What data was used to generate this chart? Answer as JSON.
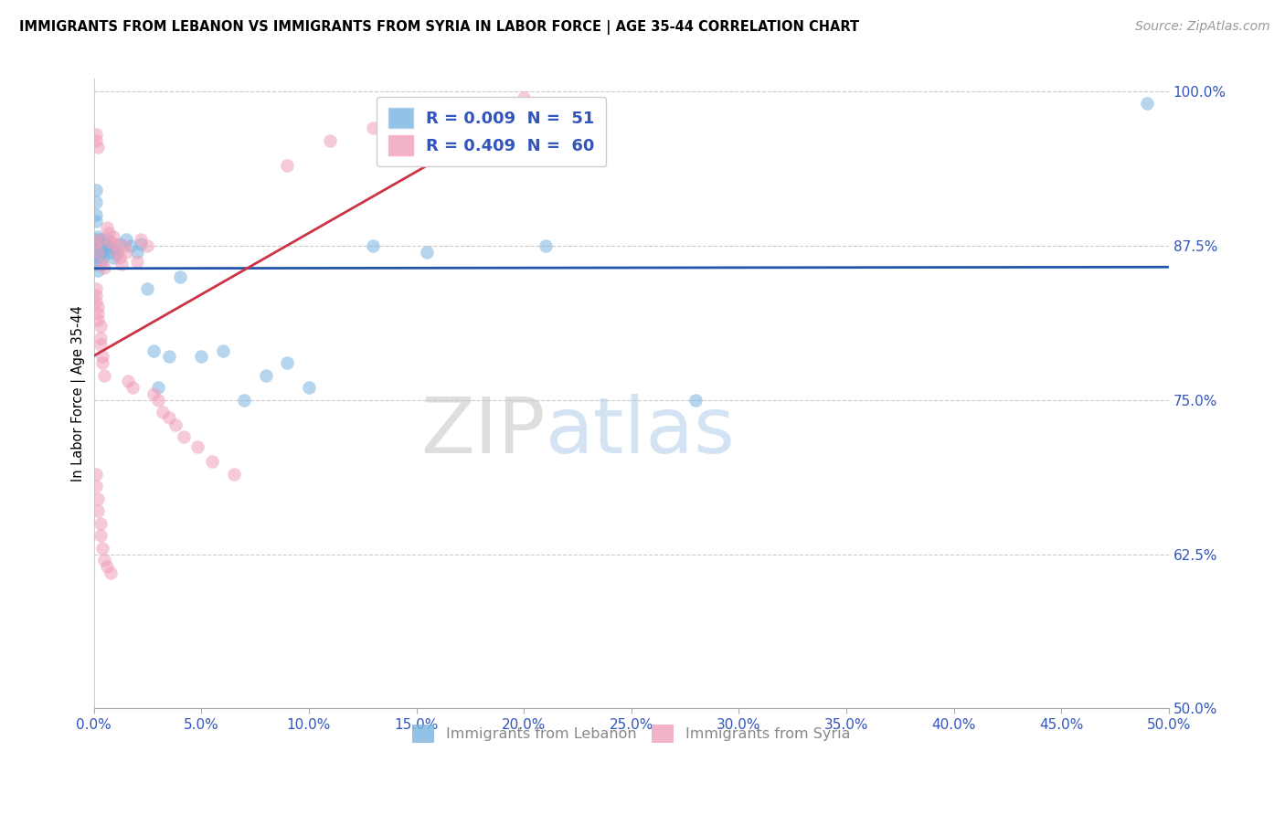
{
  "title": "IMMIGRANTS FROM LEBANON VS IMMIGRANTS FROM SYRIA IN LABOR FORCE | AGE 35-44 CORRELATION CHART",
  "source": "Source: ZipAtlas.com",
  "yaxis_label": "In Labor Force | Age 35-44",
  "legend_entry1": "R = 0.009  N =  51",
  "legend_entry2": "R = 0.409  N =  60",
  "legend_label1": "Immigrants from Lebanon",
  "legend_label2": "Immigrants from Syria",
  "color_lebanon": "#7ab3e0",
  "color_syria": "#f0a0b8",
  "color_lebanon_line": "#2255aa",
  "color_syria_line": "#cc3344",
  "watermark_zip": "ZIP",
  "watermark_atlas": "atlas",
  "xlim": [
    0.0,
    0.5
  ],
  "ylim": [
    0.5,
    1.01
  ],
  "yticks": [
    0.5,
    0.625,
    0.75,
    0.875,
    1.0
  ],
  "xticks": [
    0.0,
    0.05,
    0.1,
    0.15,
    0.2,
    0.25,
    0.3,
    0.35,
    0.4,
    0.45,
    0.5
  ],
  "lebanon_x": [
    0.001,
    0.001,
    0.001,
    0.001,
    0.001,
    0.001,
    0.001,
    0.001,
    0.002,
    0.002,
    0.002,
    0.002,
    0.002,
    0.002,
    0.003,
    0.003,
    0.003,
    0.003,
    0.004,
    0.004,
    0.004,
    0.005,
    0.005,
    0.006,
    0.006,
    0.007,
    0.008,
    0.009,
    0.01,
    0.011,
    0.012,
    0.015,
    0.017,
    0.02,
    0.022,
    0.025,
    0.028,
    0.03,
    0.035,
    0.04,
    0.05,
    0.06,
    0.07,
    0.08,
    0.09,
    0.1,
    0.13,
    0.155,
    0.21,
    0.28,
    0.49
  ],
  "lebanon_y": [
    0.875,
    0.88,
    0.87,
    0.86,
    0.92,
    0.91,
    0.9,
    0.895,
    0.878,
    0.882,
    0.876,
    0.87,
    0.865,
    0.855,
    0.88,
    0.875,
    0.87,
    0.862,
    0.875,
    0.87,
    0.865,
    0.878,
    0.872,
    0.88,
    0.875,
    0.876,
    0.87,
    0.865,
    0.872,
    0.868,
    0.876,
    0.88,
    0.875,
    0.87,
    0.876,
    0.84,
    0.79,
    0.76,
    0.785,
    0.85,
    0.785,
    0.79,
    0.75,
    0.77,
    0.78,
    0.76,
    0.875,
    0.87,
    0.875,
    0.75,
    0.99
  ],
  "syria_x": [
    0.001,
    0.001,
    0.001,
    0.001,
    0.001,
    0.001,
    0.002,
    0.002,
    0.002,
    0.002,
    0.002,
    0.003,
    0.003,
    0.003,
    0.003,
    0.004,
    0.004,
    0.004,
    0.005,
    0.005,
    0.006,
    0.007,
    0.008,
    0.009,
    0.01,
    0.011,
    0.012,
    0.013,
    0.014,
    0.015,
    0.016,
    0.018,
    0.02,
    0.022,
    0.025,
    0.028,
    0.03,
    0.032,
    0.035,
    0.038,
    0.042,
    0.048,
    0.055,
    0.065,
    0.09,
    0.11,
    0.13,
    0.15,
    0.18,
    0.2,
    0.001,
    0.001,
    0.002,
    0.002,
    0.003,
    0.003,
    0.004,
    0.005,
    0.006,
    0.008
  ],
  "syria_y": [
    0.878,
    0.965,
    0.96,
    0.84,
    0.835,
    0.83,
    0.87,
    0.955,
    0.825,
    0.82,
    0.815,
    0.88,
    0.81,
    0.8,
    0.795,
    0.86,
    0.785,
    0.78,
    0.857,
    0.77,
    0.89,
    0.885,
    0.878,
    0.882,
    0.876,
    0.87,
    0.865,
    0.86,
    0.875,
    0.87,
    0.765,
    0.76,
    0.862,
    0.88,
    0.875,
    0.755,
    0.75,
    0.74,
    0.736,
    0.73,
    0.72,
    0.712,
    0.7,
    0.69,
    0.94,
    0.96,
    0.97,
    0.98,
    0.99,
    0.995,
    0.69,
    0.68,
    0.67,
    0.66,
    0.65,
    0.64,
    0.63,
    0.62,
    0.615,
    0.61
  ]
}
